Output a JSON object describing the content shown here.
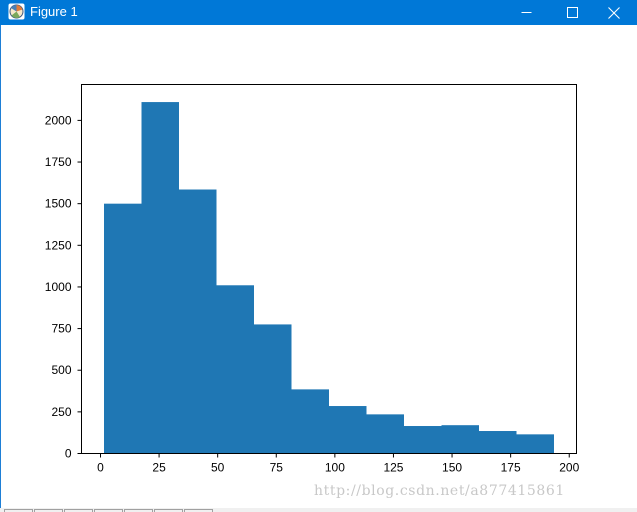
{
  "window": {
    "title": "Figure 1",
    "icon": "matplotlib-figure-icon",
    "controls": {
      "minimize": "minimize-icon",
      "maximize": "maximize-icon",
      "close": "close-icon"
    },
    "titlebar_color": "#0078d7"
  },
  "toolbar": {
    "buttons": [
      "home",
      "back",
      "forward",
      "pan",
      "zoom",
      "configure-subplots",
      "save"
    ]
  },
  "watermark": "http://blog.csdn.net/a877415861",
  "chart_data": {
    "type": "bar",
    "subtype": "histogram",
    "title": "",
    "xlabel": "",
    "ylabel": "",
    "bin_edges": [
      1.5,
      17.5,
      33.5,
      49.5,
      65.5,
      81.5,
      97.5,
      113.5,
      129.5,
      145.5,
      161.5,
      177.5,
      193.5
    ],
    "values": [
      1500,
      2110,
      1585,
      1010,
      775,
      385,
      285,
      235,
      165,
      170,
      135,
      115
    ],
    "xlim": [
      -8.1,
      203.1
    ],
    "ylim": [
      0,
      2215.5
    ],
    "xticks": [
      0,
      25,
      50,
      75,
      100,
      125,
      150,
      175,
      200
    ],
    "xtick_labels": [
      "0",
      "25",
      "50",
      "75",
      "100",
      "125",
      "150",
      "175",
      "200"
    ],
    "yticks": [
      0,
      250,
      500,
      750,
      1000,
      1250,
      1500,
      1750,
      2000
    ],
    "ytick_labels": [
      "0",
      "250",
      "500",
      "750",
      "1000",
      "1250",
      "1500",
      "1750",
      "2000"
    ],
    "bar_color": "#1f77b4",
    "grid": false,
    "legend": false
  }
}
